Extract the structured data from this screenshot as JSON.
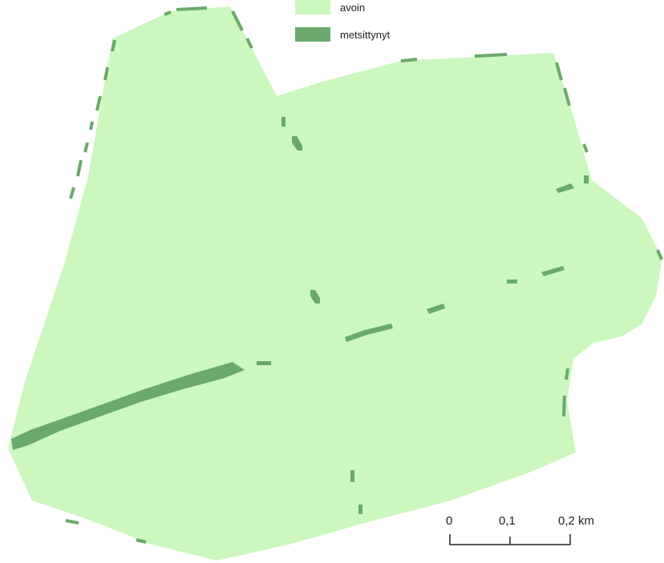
{
  "legend": {
    "items": [
      {
        "label": "avoin",
        "color": "#ccf7bf"
      },
      {
        "label": "metsittynyt",
        "color": "#6aa96b"
      }
    ]
  },
  "scale_bar": {
    "ticks": [
      "0",
      "0,1",
      "0,2 km"
    ]
  },
  "colors": {
    "open_area": "#ccf7bf",
    "forested": "#6aa96b",
    "background": "#ffffff",
    "scale_line": "#222222"
  }
}
